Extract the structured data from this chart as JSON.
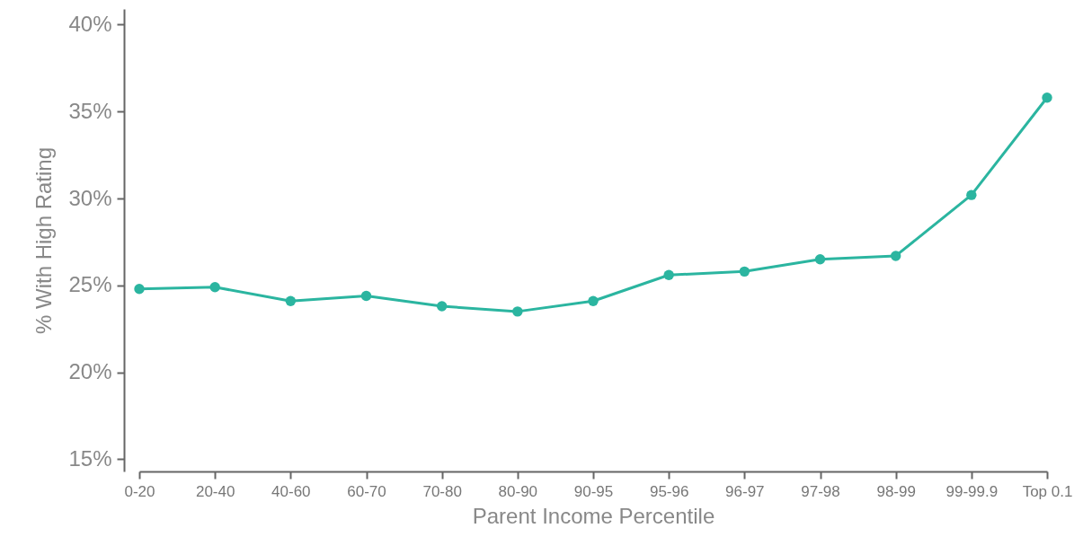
{
  "chart_data": {
    "type": "line",
    "xlabel": "Parent Income Percentile",
    "ylabel": "% With High Rating",
    "categories": [
      "0-20",
      "20-40",
      "40-60",
      "60-70",
      "70-80",
      "80-90",
      "90-95",
      "95-96",
      "96-97",
      "97-98",
      "98-99",
      "99-99.9",
      "Top 0.1"
    ],
    "series": [
      {
        "color": "#2bb5a0",
        "values": [
          24.8,
          24.9,
          24.1,
          24.4,
          23.8,
          23.5,
          24.1,
          25.6,
          25.8,
          26.5,
          26.7,
          30.2,
          35.8
        ]
      }
    ],
    "ylim": [
      14.3,
      40.9
    ],
    "yticks": [
      {
        "value": 15,
        "label": "15%"
      },
      {
        "value": 20,
        "label": "20%"
      },
      {
        "value": 25,
        "label": "25%"
      },
      {
        "value": 30,
        "label": "30%"
      },
      {
        "value": 35,
        "label": "35%"
      },
      {
        "value": 40,
        "label": "40%"
      }
    ],
    "grid": false,
    "marker": "circle",
    "line_style": "solid"
  }
}
